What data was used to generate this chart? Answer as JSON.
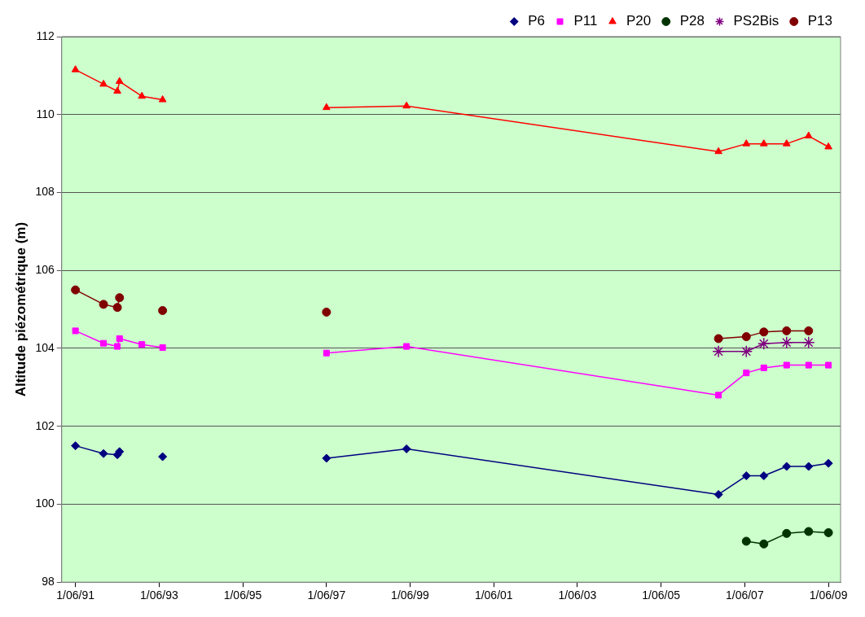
{
  "chart_data": {
    "type": "line",
    "ylabel": "Altitude piézométrique (m)",
    "x": [
      "1991-06-01",
      "1992-02-01",
      "1992-06-01",
      "1992-06-20",
      "1993-01-01",
      "1993-07-01",
      "1995-06-01",
      "1997-06-01",
      "1999-05-01",
      "2006-10-15",
      "2007-06-15",
      "2007-11-15",
      "2008-06-01",
      "2008-12-10",
      "2009-06-01"
    ],
    "xlim": [
      "1991-02-01",
      "2009-09-15"
    ],
    "xticks": [
      {
        "value": "1991-06-01",
        "label": "1/06/91"
      },
      {
        "value": "1993-06-01",
        "label": "1/06/93"
      },
      {
        "value": "1995-06-01",
        "label": "1/06/95"
      },
      {
        "value": "1997-06-01",
        "label": "1/06/97"
      },
      {
        "value": "1999-06-01",
        "label": "1/06/99"
      },
      {
        "value": "2001-06-01",
        "label": "1/06/01"
      },
      {
        "value": "2003-06-01",
        "label": "1/06/03"
      },
      {
        "value": "2005-06-01",
        "label": "1/06/05"
      },
      {
        "value": "2007-06-01",
        "label": "1/06/07"
      },
      {
        "value": "2009-06-01",
        "label": "1/06/09"
      }
    ],
    "ylim": [
      98,
      112
    ],
    "yticks": [
      98,
      100,
      102,
      104,
      106,
      108,
      110,
      112
    ],
    "grid": "y",
    "legend": "top right",
    "series": [
      {
        "name": "P6",
        "color": "#000080",
        "marker": "diamond",
        "values": [
          101.5,
          101.3,
          101.27,
          101.35,
          null,
          101.22,
          null,
          101.18,
          101.42,
          100.25,
          100.73,
          100.73,
          100.97,
          100.97,
          101.05
        ]
      },
      {
        "name": "P11",
        "color": "#ff00ff",
        "marker": "square",
        "values": [
          104.45,
          104.13,
          104.05,
          104.25,
          104.1,
          104.02,
          null,
          103.88,
          104.05,
          102.8,
          103.37,
          103.5,
          103.57,
          103.57,
          103.57
        ]
      },
      {
        "name": "P20",
        "color": "#ff0000",
        "marker": "triangle",
        "values": [
          111.15,
          110.78,
          110.6,
          110.85,
          110.47,
          110.38,
          null,
          110.18,
          110.22,
          109.05,
          109.25,
          109.25,
          109.25,
          109.45,
          109.17
        ]
      },
      {
        "name": "P28",
        "color": "#003300",
        "marker": "circle",
        "values": [
          null,
          null,
          null,
          null,
          null,
          null,
          null,
          null,
          null,
          null,
          99.05,
          98.98,
          99.25,
          99.3,
          99.27
        ]
      },
      {
        "name": "PS2Bis",
        "color": "#800080",
        "marker": "cross",
        "values": [
          null,
          null,
          null,
          null,
          null,
          null,
          null,
          null,
          null,
          103.92,
          103.92,
          104.12,
          104.15,
          104.15,
          null
        ]
      },
      {
        "name": "P13",
        "color": "#800000",
        "marker": "circle",
        "values": [
          105.5,
          105.13,
          105.05,
          105.3,
          null,
          104.97,
          null,
          104.93,
          null,
          104.25,
          104.3,
          104.42,
          104.45,
          104.45,
          null
        ]
      }
    ]
  }
}
